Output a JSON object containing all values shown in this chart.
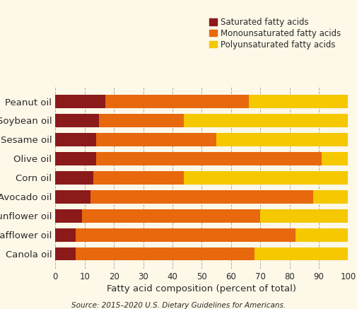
{
  "oils": [
    "Peanut oil",
    "Soybean oil",
    "Sesame oil",
    "Olive oil",
    "Corn oil",
    "Avocado oil",
    "Sunflower oil",
    "Safflower oil",
    "Canola oil"
  ],
  "saturated": [
    17,
    15,
    14,
    14,
    13,
    12,
    9,
    7,
    7
  ],
  "monounsaturated": [
    49,
    29,
    41,
    77,
    31,
    76,
    61,
    75,
    61
  ],
  "polyunsaturated": [
    34,
    56,
    45,
    9,
    56,
    12,
    30,
    18,
    32
  ],
  "colors": {
    "saturated": "#8B1A1A",
    "monounsaturated": "#E8680E",
    "polyunsaturated": "#F5C800"
  },
  "background_color": "#FDF8E8",
  "xlabel": "Fatty acid composition (percent of total)",
  "source": "Source: 2015–2020 U.S. Dietary Guidelines for Americans.",
  "xlim": [
    0,
    100
  ],
  "xticks": [
    0,
    10,
    20,
    30,
    40,
    50,
    60,
    70,
    80,
    90,
    100
  ],
  "legend_labels": [
    "Saturated fatty acids",
    "Monounsaturated fatty acids",
    "Polyunsaturated fatty acids"
  ]
}
